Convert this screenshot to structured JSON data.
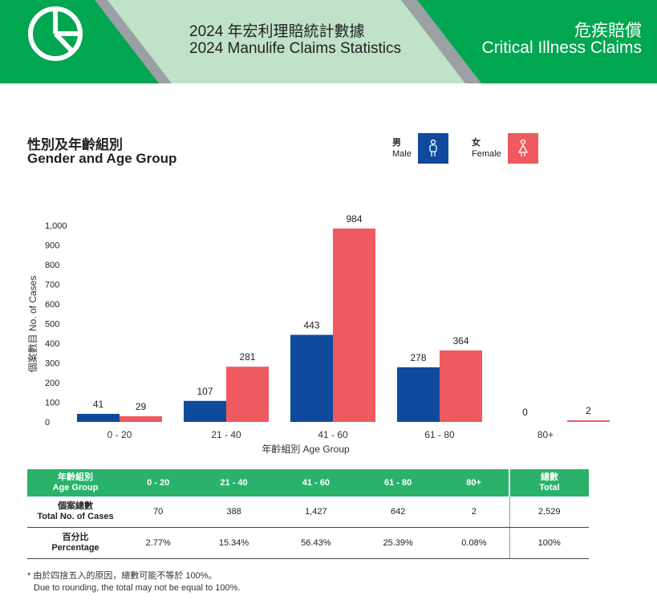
{
  "header": {
    "title_cn": "2024 年宏利理賠統計數據",
    "title_en": "2024 Manulife Claims Statistics",
    "category_cn": "危疾賠償",
    "category_en": "Critical Illness Claims"
  },
  "section": {
    "title_cn": "性別及年齡組別",
    "title_en": "Gender and Age Group"
  },
  "legend": {
    "male_cn": "男",
    "male_en": "Male",
    "female_cn": "女",
    "female_en": "Female"
  },
  "colors": {
    "male": "#0f4a9c",
    "female": "#ee5a5f",
    "green": "#2ab26b",
    "header_green": "#00a650"
  },
  "chart_data": {
    "type": "bar",
    "categories": [
      "0 - 20",
      "21 - 40",
      "41 - 60",
      "61 - 80",
      "80+"
    ],
    "series": [
      {
        "name": "Male",
        "values": [
          41,
          107,
          443,
          278,
          0
        ]
      },
      {
        "name": "Female",
        "values": [
          29,
          281,
          984,
          364,
          2
        ]
      }
    ],
    "ylabel": "個案數目 No. of Cases",
    "xlabel": "年齡組別 Age Group",
    "ylim": [
      0,
      1000
    ],
    "yticks": [
      "0",
      "100",
      "200",
      "300",
      "400",
      "500",
      "600",
      "700",
      "800",
      "900",
      "1,000"
    ],
    "grid": false
  },
  "table": {
    "header_cn": "年齡組別",
    "header_en": "Age Group",
    "columns": [
      "0 - 20",
      "21 - 40",
      "41 - 60",
      "61 - 80",
      "80+"
    ],
    "total_cn": "總數",
    "total_en": "Total",
    "rows": [
      {
        "label_cn": "個案總數",
        "label_en": "Total No. of Cases",
        "values": [
          "70",
          "388",
          "1,427",
          "642",
          "2"
        ],
        "total": "2,529"
      },
      {
        "label_cn": "百分比",
        "label_en": "Percentage",
        "values": [
          "2.77%",
          "15.34%",
          "56.43%",
          "25.39%",
          "0.08%"
        ],
        "total": "100%"
      }
    ]
  },
  "notes": {
    "cn": "* 由於四捨五入的原因，總數可能不等於 100%。",
    "en": "Due to rounding, the total may not be equal to 100%."
  }
}
